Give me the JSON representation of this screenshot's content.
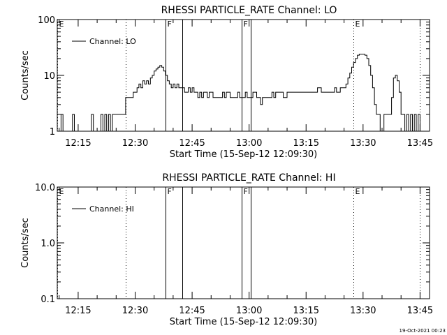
{
  "footer": {
    "timestamp": "19-Oct-2021 00:23"
  },
  "chart_data": [
    {
      "type": "line",
      "title": "RHESSI PARTICLE_RATE Channel: LO",
      "xlabel": "Start Time (15-Sep-12 12:09:30)",
      "ylabel": "Counts/sec",
      "yscale": "log",
      "xlim": [
        "12:09:30",
        "13:47:30"
      ],
      "ylim": [
        1,
        100
      ],
      "x_ticks": [
        "12:15",
        "12:30",
        "12:45",
        "13:00",
        "13:15",
        "13:30",
        "13:45"
      ],
      "y_ticks": [
        "1",
        "10",
        "100"
      ],
      "grid": false,
      "legend": {
        "position": "top-left",
        "entries": [
          "Channel: LO"
        ]
      },
      "markers": [
        {
          "label": "E",
          "time": "12:09:30",
          "style": "dotted"
        },
        {
          "label": "",
          "time": "12:27:30",
          "style": "dotted"
        },
        {
          "label": "F",
          "time": "12:38:00",
          "style": "solid"
        },
        {
          "label": "",
          "time": "12:42:30",
          "style": "solid"
        },
        {
          "label": "F",
          "time": "12:58:00",
          "style": "solid"
        },
        {
          "label": "",
          "time": "13:00:30",
          "style": "solid"
        },
        {
          "label": "E",
          "time": "13:27:30",
          "style": "dotted"
        },
        {
          "label": "",
          "time": "13:45:00",
          "style": "dotted"
        }
      ],
      "series": [
        {
          "name": "Channel: LO",
          "points": [
            [
              "12:09:30",
              1
            ],
            [
              "12:10:00",
              1
            ],
            [
              "12:10:30",
              2
            ],
            [
              "12:11:00",
              1
            ],
            [
              "12:12:00",
              1
            ],
            [
              "12:13:00",
              1
            ],
            [
              "12:13:30",
              2
            ],
            [
              "12:14:00",
              1
            ],
            [
              "12:15:00",
              1
            ],
            [
              "12:16:00",
              1
            ],
            [
              "12:18:00",
              1
            ],
            [
              "12:18:30",
              2
            ],
            [
              "12:19:00",
              1
            ],
            [
              "12:20:30",
              1
            ],
            [
              "12:21:00",
              2
            ],
            [
              "12:21:30",
              1
            ],
            [
              "12:22:00",
              2
            ],
            [
              "12:22:30",
              1
            ],
            [
              "12:23:00",
              2
            ],
            [
              "12:23:30",
              1
            ],
            [
              "12:24:00",
              2
            ],
            [
              "12:25:00",
              2
            ],
            [
              "12:26:00",
              2
            ],
            [
              "12:27:00",
              2
            ],
            [
              "12:27:30",
              4
            ],
            [
              "12:28:30",
              4
            ],
            [
              "12:29:00",
              4
            ],
            [
              "12:29:30",
              5
            ],
            [
              "12:30:00",
              5
            ],
            [
              "12:30:30",
              6
            ],
            [
              "12:31:00",
              7
            ],
            [
              "12:31:30",
              6
            ],
            [
              "12:32:00",
              8
            ],
            [
              "12:32:30",
              7
            ],
            [
              "12:33:00",
              8
            ],
            [
              "12:33:30",
              7
            ],
            [
              "12:34:00",
              9
            ],
            [
              "12:34:30",
              10
            ],
            [
              "12:35:00",
              12
            ],
            [
              "12:35:30",
              13
            ],
            [
              "12:36:00",
              14
            ],
            [
              "12:36:30",
              15
            ],
            [
              "12:37:00",
              14
            ],
            [
              "12:37:30",
              12
            ],
            [
              "12:38:00",
              10
            ],
            [
              "12:38:30",
              8
            ],
            [
              "12:39:00",
              7
            ],
            [
              "12:39:30",
              6
            ],
            [
              "12:40:00",
              7
            ],
            [
              "12:40:30",
              6
            ],
            [
              "12:41:00",
              7
            ],
            [
              "12:41:30",
              6
            ],
            [
              "12:42:00",
              6
            ],
            [
              "12:42:30",
              6
            ],
            [
              "12:43:00",
              5
            ],
            [
              "12:44:00",
              6
            ],
            [
              "12:44:30",
              5
            ],
            [
              "12:45:00",
              6
            ],
            [
              "12:45:30",
              5
            ],
            [
              "12:46:00",
              5
            ],
            [
              "12:46:30",
              4
            ],
            [
              "12:47:00",
              5
            ],
            [
              "12:47:30",
              4
            ],
            [
              "12:48:00",
              5
            ],
            [
              "12:48:30",
              5
            ],
            [
              "12:49:00",
              4
            ],
            [
              "12:49:30",
              5
            ],
            [
              "12:50:00",
              5
            ],
            [
              "12:50:30",
              4
            ],
            [
              "12:51:00",
              4
            ],
            [
              "12:52:00",
              4
            ],
            [
              "12:53:00",
              5
            ],
            [
              "12:53:30",
              4
            ],
            [
              "12:54:00",
              5
            ],
            [
              "12:55:00",
              4
            ],
            [
              "12:56:00",
              4
            ],
            [
              "12:57:00",
              5
            ],
            [
              "12:57:30",
              4
            ],
            [
              "12:58:00",
              4
            ],
            [
              "12:59:00",
              5
            ],
            [
              "12:59:30",
              4
            ],
            [
              "13:00:00",
              4
            ],
            [
              "13:00:30",
              4
            ],
            [
              "13:01:00",
              5
            ],
            [
              "13:02:00",
              4
            ],
            [
              "13:02:30",
              4
            ],
            [
              "13:03:00",
              3
            ],
            [
              "13:03:30",
              4
            ],
            [
              "13:04:00",
              4
            ],
            [
              "13:05:00",
              4
            ],
            [
              "13:06:00",
              5
            ],
            [
              "13:06:30",
              4
            ],
            [
              "13:07:00",
              5
            ],
            [
              "13:08:00",
              5
            ],
            [
              "13:09:00",
              4
            ],
            [
              "13:10:00",
              5
            ],
            [
              "13:11:00",
              5
            ],
            [
              "13:12:00",
              5
            ],
            [
              "13:13:00",
              5
            ],
            [
              "13:14:00",
              5
            ],
            [
              "13:15:00",
              5
            ],
            [
              "13:16:00",
              5
            ],
            [
              "13:17:00",
              5
            ],
            [
              "13:18:00",
              6
            ],
            [
              "13:19:00",
              5
            ],
            [
              "13:20:00",
              5
            ],
            [
              "13:21:00",
              5
            ],
            [
              "13:22:00",
              5
            ],
            [
              "13:22:30",
              6
            ],
            [
              "13:23:00",
              5
            ],
            [
              "13:24:00",
              6
            ],
            [
              "13:25:00",
              6
            ],
            [
              "13:25:30",
              7
            ],
            [
              "13:26:00",
              9
            ],
            [
              "13:26:30",
              11
            ],
            [
              "13:27:00",
              14
            ],
            [
              "13:27:30",
              17
            ],
            [
              "13:28:00",
              20
            ],
            [
              "13:28:30",
              23
            ],
            [
              "13:29:00",
              24
            ],
            [
              "13:30:00",
              24
            ],
            [
              "13:30:30",
              23
            ],
            [
              "13:31:00",
              20
            ],
            [
              "13:31:30",
              15
            ],
            [
              "13:32:00",
              10
            ],
            [
              "13:32:30",
              6
            ],
            [
              "13:33:00",
              3
            ],
            [
              "13:33:30",
              2
            ],
            [
              "13:34:00",
              2
            ],
            [
              "13:34:30",
              1
            ],
            [
              "13:35:00",
              1
            ],
            [
              "13:35:30",
              2
            ],
            [
              "13:36:00",
              2
            ],
            [
              "13:36:30",
              2
            ],
            [
              "13:37:00",
              2
            ],
            [
              "13:37:30",
              4
            ],
            [
              "13:38:00",
              9
            ],
            [
              "13:38:30",
              10
            ],
            [
              "13:39:00",
              8
            ],
            [
              "13:39:30",
              5
            ],
            [
              "13:40:00",
              2
            ],
            [
              "13:40:30",
              2
            ],
            [
              "13:41:00",
              1
            ],
            [
              "13:41:30",
              2
            ],
            [
              "13:42:00",
              1
            ],
            [
              "13:42:30",
              2
            ],
            [
              "13:43:00",
              1
            ],
            [
              "13:43:30",
              2
            ],
            [
              "13:44:00",
              1
            ],
            [
              "13:44:30",
              2
            ],
            [
              "13:45:00",
              1
            ]
          ]
        }
      ]
    },
    {
      "type": "line",
      "title": "RHESSI PARTICLE_RATE Channel: HI",
      "xlabel": "Start Time (15-Sep-12 12:09:30)",
      "ylabel": "Counts/sec",
      "yscale": "log",
      "xlim": [
        "12:09:30",
        "13:47:30"
      ],
      "ylim": [
        0.1,
        10.0
      ],
      "x_ticks": [
        "12:15",
        "12:30",
        "12:45",
        "13:00",
        "13:15",
        "13:30",
        "13:45"
      ],
      "y_ticks": [
        "0.1",
        "1.0",
        "10.0"
      ],
      "grid": false,
      "legend": {
        "position": "top-left",
        "entries": [
          "Channel: HI"
        ]
      },
      "markers": [
        {
          "label": "E",
          "time": "12:09:30",
          "style": "dotted"
        },
        {
          "label": "",
          "time": "12:27:30",
          "style": "dotted"
        },
        {
          "label": "F",
          "time": "12:38:00",
          "style": "solid"
        },
        {
          "label": "",
          "time": "12:42:30",
          "style": "solid"
        },
        {
          "label": "F",
          "time": "12:58:00",
          "style": "solid"
        },
        {
          "label": "",
          "time": "13:00:30",
          "style": "solid"
        },
        {
          "label": "E",
          "time": "13:27:30",
          "style": "dotted"
        },
        {
          "label": "",
          "time": "13:45:00",
          "style": "dotted"
        }
      ],
      "series": [
        {
          "name": "Channel: HI",
          "points": []
        }
      ]
    }
  ]
}
